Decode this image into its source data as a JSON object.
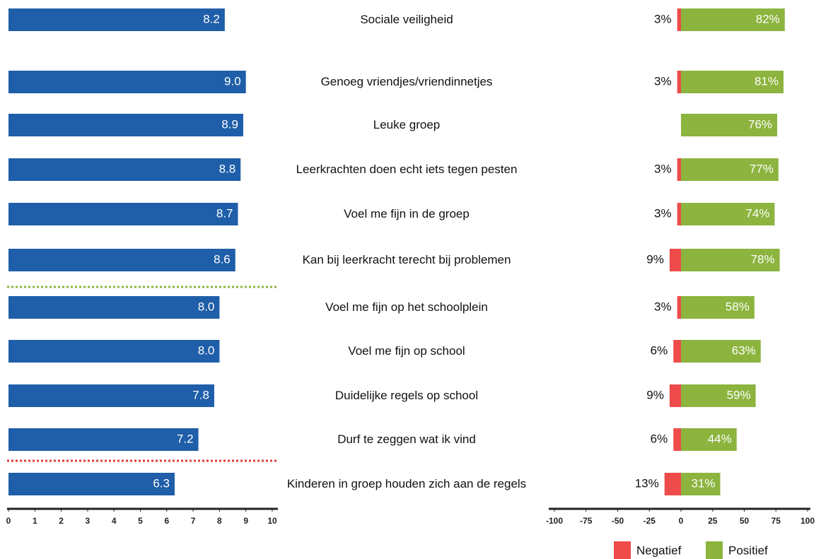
{
  "chart_data": [
    {
      "type": "hbar",
      "categories": [
        "Sociale veiligheid",
        "Genoeg vriendjes/vriendinnetjes",
        "Leuke groep",
        "Leerkrachten doen echt iets tegen pesten",
        "Voel me fijn in de groep",
        "Kan bij leerkracht terecht bij problemen",
        "Voel me fijn op het schoolplein",
        "Voel me fijn op school",
        "Duidelijke regels op school",
        "Durf te zeggen wat ik vind",
        "Kinderen in groep houden zich aan de regels"
      ],
      "values": [
        8.2,
        9.0,
        8.9,
        8.8,
        8.7,
        8.6,
        8.0,
        8.0,
        7.8,
        7.2,
        6.3
      ],
      "value_labels": [
        "8.2",
        "9.0",
        "8.9",
        "8.8",
        "8.7",
        "8.6",
        "8.0",
        "8.0",
        "7.8",
        "7.2",
        "6.3"
      ],
      "color": "#1f5ea8",
      "xlim": [
        0,
        10
      ],
      "xticks": [
        0,
        1,
        2,
        3,
        4,
        5,
        6,
        7,
        8,
        9,
        10
      ]
    },
    {
      "type": "diverging",
      "series": [
        {
          "name": "Negatief",
          "color": "#ee4b4b",
          "values": [
            -3,
            -3,
            null,
            -3,
            -3,
            -9,
            -3,
            -6,
            -9,
            -6,
            -13
          ],
          "value_labels": [
            "3%",
            "3%",
            null,
            "3%",
            "3%",
            "9%",
            "3%",
            "6%",
            "9%",
            "6%",
            "13%"
          ]
        },
        {
          "name": "Positief",
          "color": "#8cb43e",
          "values": [
            82,
            81,
            76,
            77,
            74,
            78,
            58,
            63,
            59,
            44,
            31
          ],
          "value_labels": [
            "82%",
            "81%",
            "76%",
            "77%",
            "74%",
            "78%",
            "58%",
            "63%",
            "59%",
            "44%",
            "31%"
          ]
        }
      ],
      "xlim": [
        -100,
        100
      ],
      "xticks": [
        -100,
        -75,
        -50,
        -25,
        0,
        25,
        50,
        75,
        100
      ]
    }
  ]
}
